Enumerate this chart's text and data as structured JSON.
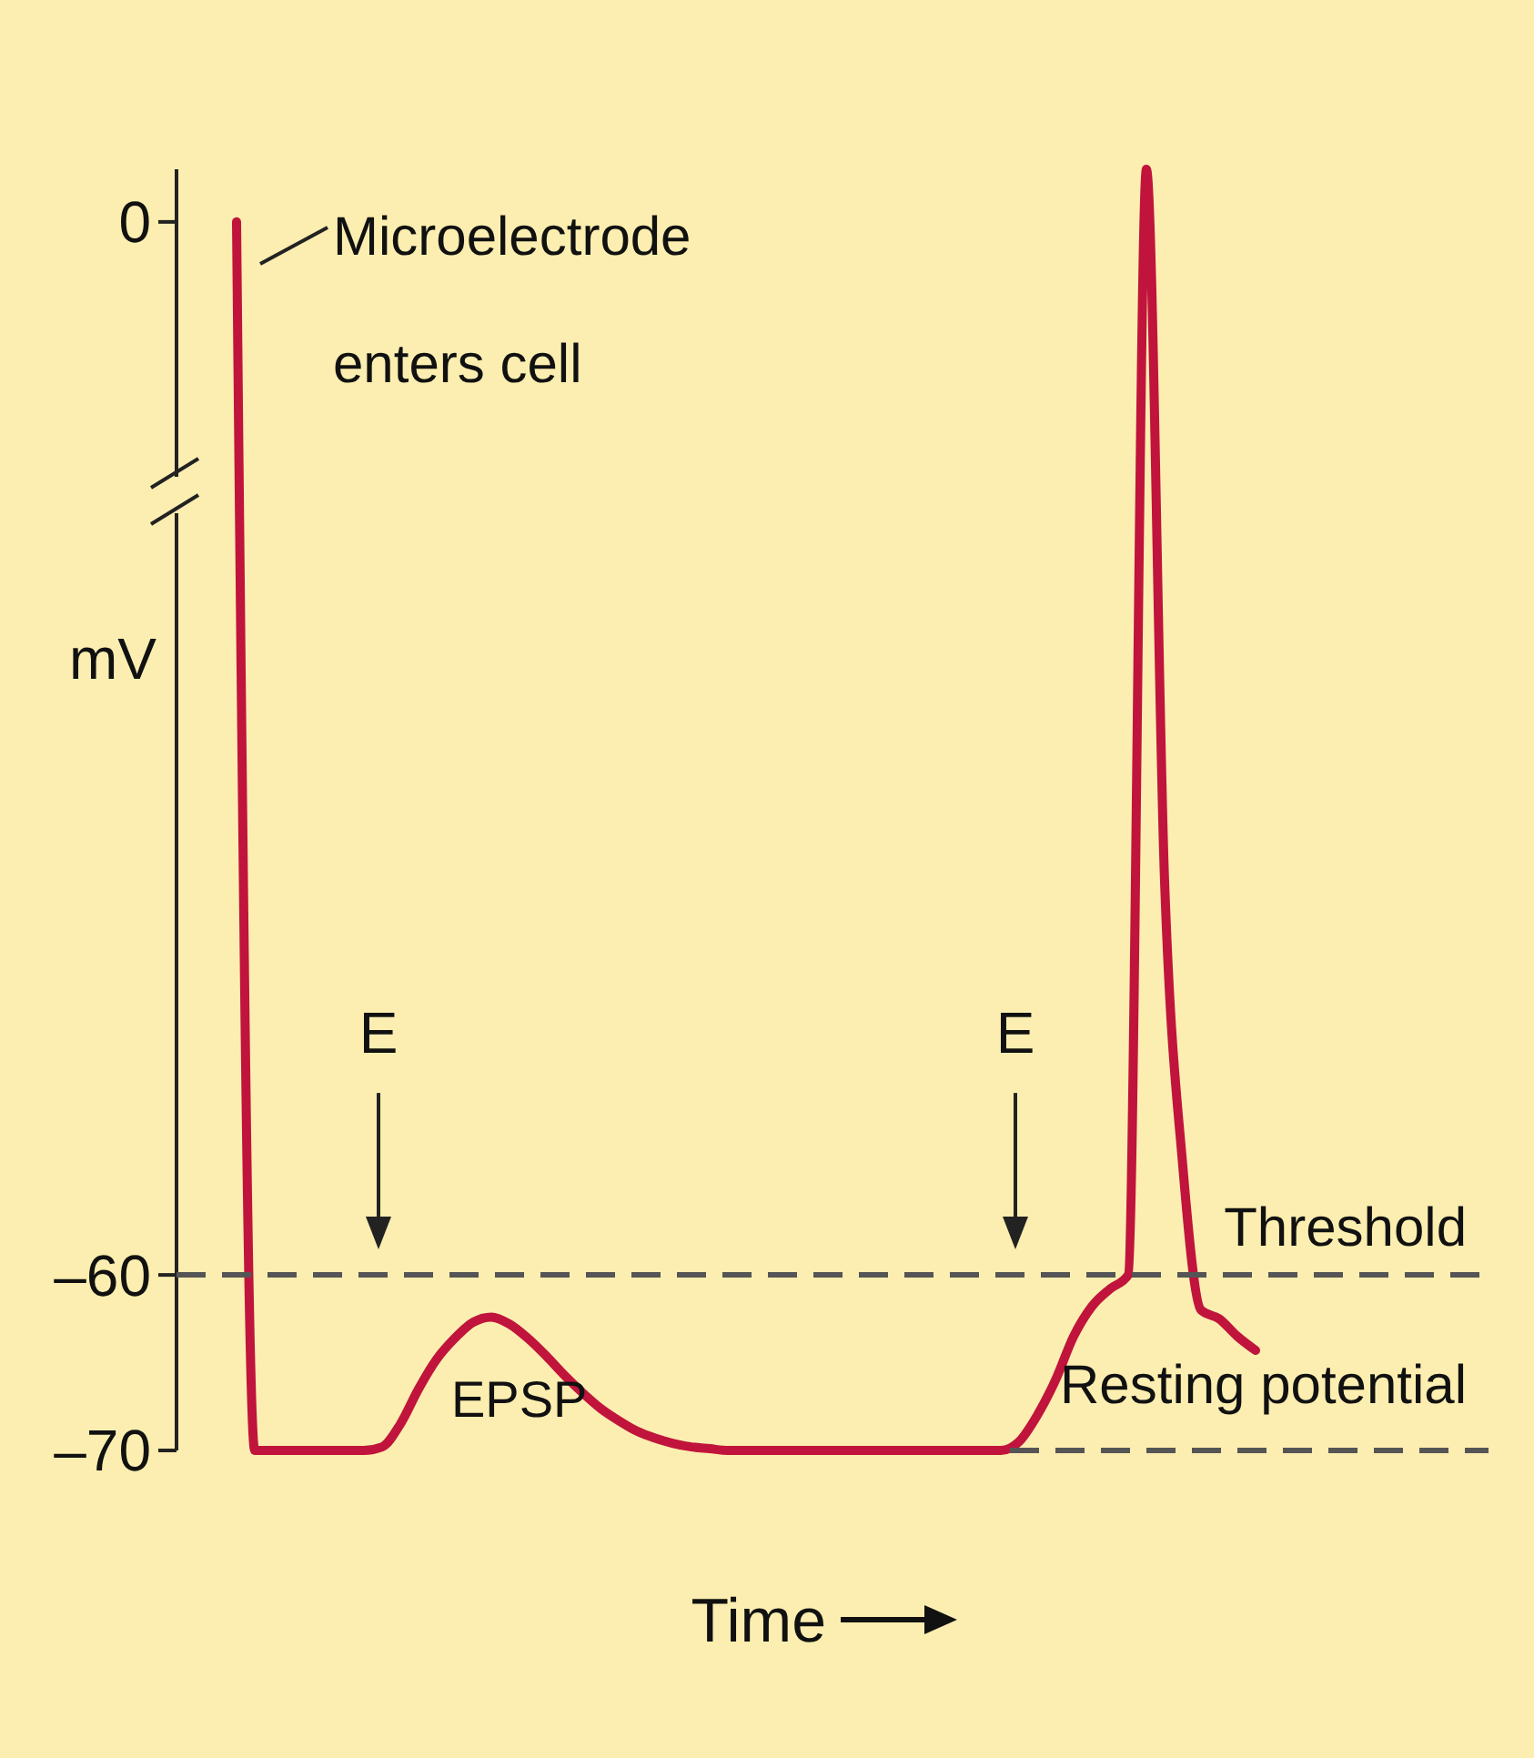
{
  "chart_data": {
    "type": "line",
    "xlabel": "Time",
    "ylabel": "mV",
    "categories": [
      null,
      null,
      null,
      null,
      null,
      null,
      null,
      null,
      null,
      null,
      null,
      null,
      null,
      null,
      null,
      null,
      null,
      null,
      null,
      null,
      null,
      null,
      null,
      null,
      null,
      null,
      null,
      null,
      null,
      null,
      null,
      null,
      null,
      null,
      null,
      null,
      null,
      null,
      null,
      null,
      null,
      null,
      null,
      null,
      null,
      null,
      null,
      null,
      null,
      null,
      null,
      null,
      null,
      null,
      null,
      null,
      null
    ],
    "series": [
      {
        "color": "#c0143c",
        "values": [
          0,
          -70,
          -70,
          -70,
          -70,
          -70,
          -70,
          -70,
          -69.8,
          -68.5,
          -66.5,
          -64.8,
          -63.6,
          -62.7,
          -62.4,
          -62.8,
          -63.6,
          -64.6,
          -65.7,
          -66.7,
          -67.6,
          -68.3,
          -68.9,
          -69.3,
          -69.6,
          -69.8,
          -69.9,
          -70,
          -70,
          -70,
          -70,
          -70,
          -70,
          -70,
          -70,
          -70,
          -70,
          -70,
          -70,
          -70,
          -70,
          -70,
          -70,
          -69.5,
          -68,
          -66,
          -63.5,
          -61.8,
          -60.8,
          -60,
          3,
          -37.6,
          -53.8,
          -62,
          -62.5,
          -63.5,
          -64.3
        ]
      }
    ],
    "ylim": [
      -70,
      3
    ],
    "yticks": [
      {
        "value": -70,
        "label": "–70"
      },
      {
        "value": -60,
        "label": "–60"
      },
      0
    ],
    "ref_lines": [
      {
        "axis": "y",
        "value": -60,
        "label": "Threshold",
        "color": "#555555",
        "line_style": "dashed"
      },
      {
        "axis": "y",
        "value": -70,
        "label": "Resting potential",
        "color": "#555555",
        "line_style": "dashed"
      }
    ],
    "annotations": [
      "Microelectrode enters cell",
      "E",
      "E",
      "EPSP"
    ],
    "grid": false
  }
}
